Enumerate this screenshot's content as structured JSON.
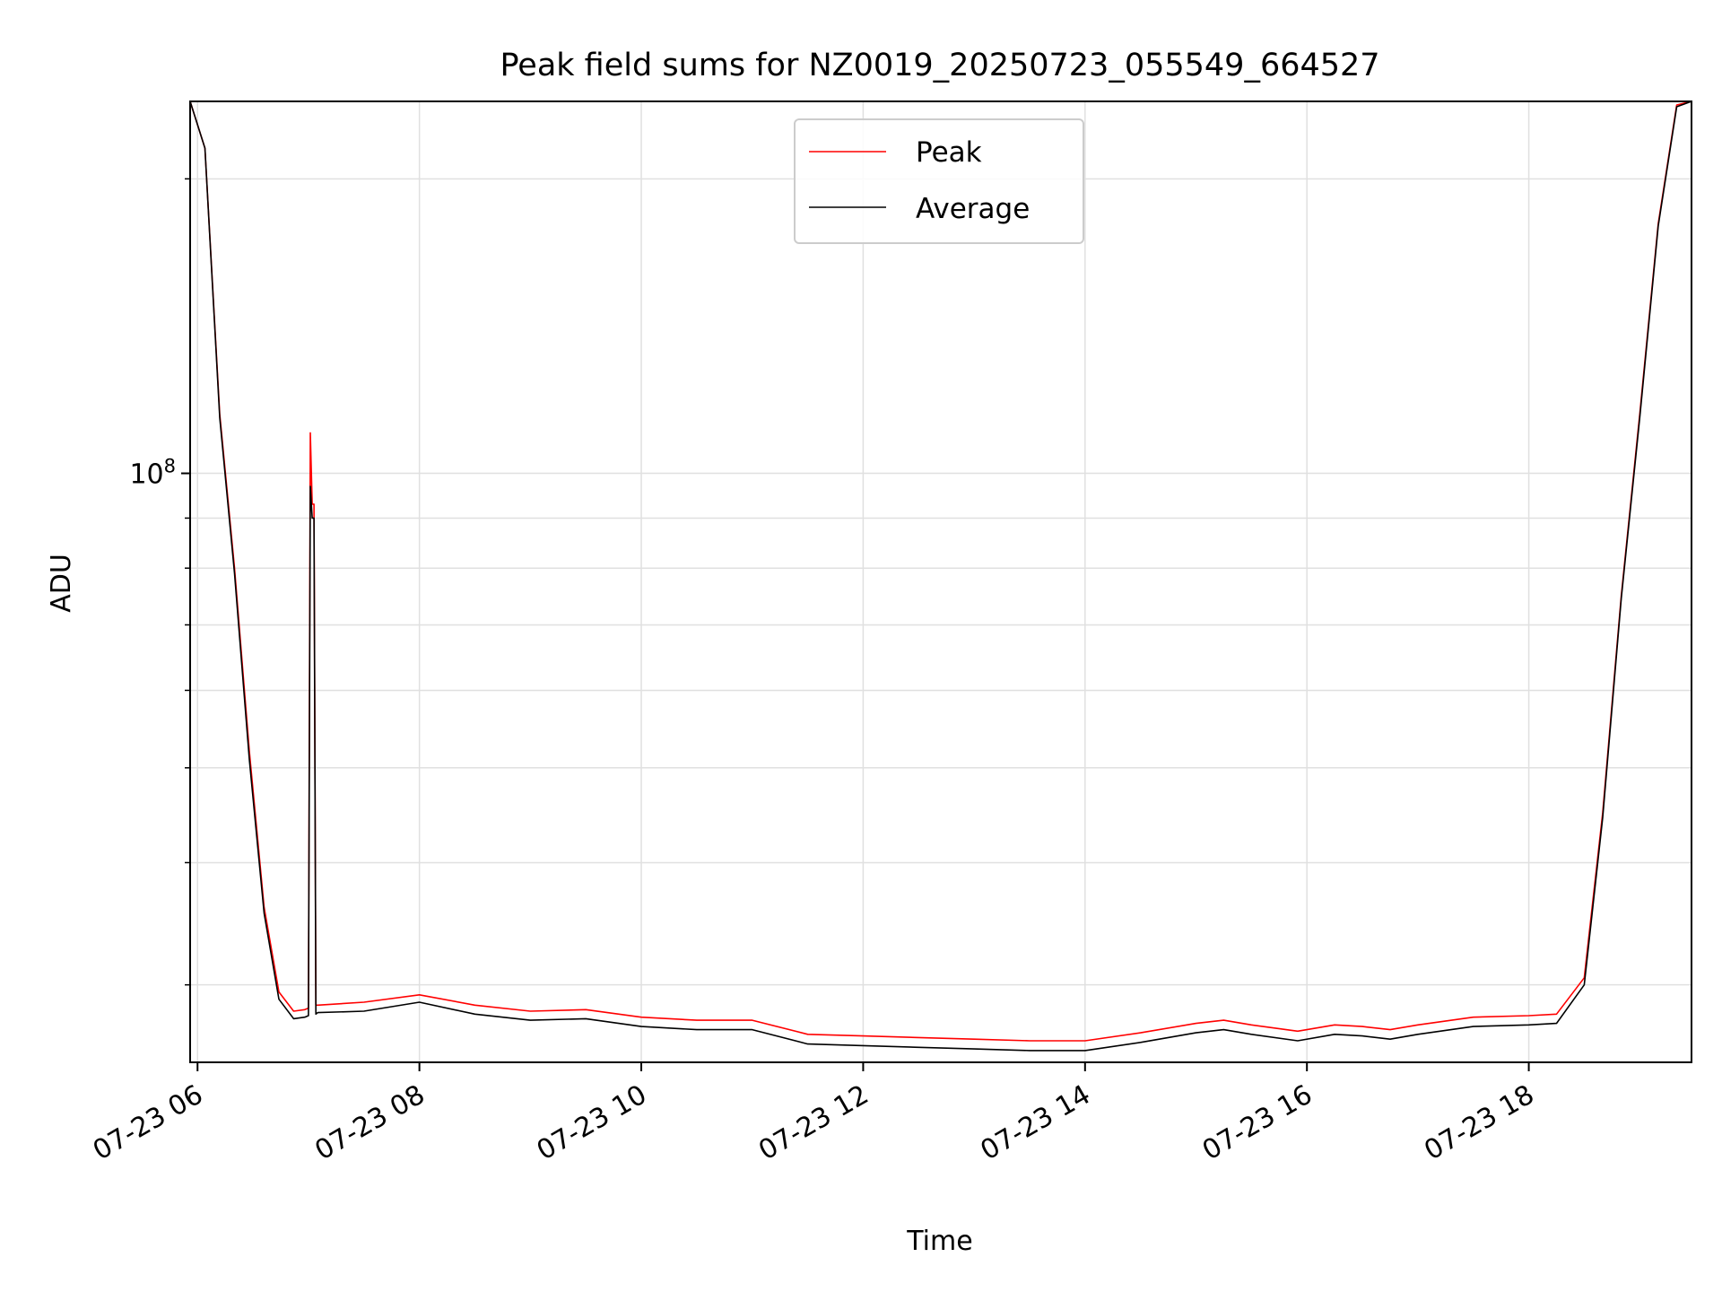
{
  "chart_data": {
    "type": "line",
    "title": "Peak field sums for NZ0019_20250723_055549_664527",
    "xlabel": "Time",
    "ylabel": "ADU",
    "y_scale": "log",
    "x_range": [
      "2025-07-23 05:56",
      "2025-07-23 19:28"
    ],
    "ylim": [
      25000000,
      240000000
    ],
    "grid": true,
    "legend_placement": "upper center",
    "x_ticks": [
      {
        "t": "2025-07-23 06:00",
        "label": "07-23 06"
      },
      {
        "t": "2025-07-23 08:00",
        "label": "07-23 08"
      },
      {
        "t": "2025-07-23 10:00",
        "label": "07-23 10"
      },
      {
        "t": "2025-07-23 12:00",
        "label": "07-23 12"
      },
      {
        "t": "2025-07-23 14:00",
        "label": "07-23 14"
      },
      {
        "t": "2025-07-23 16:00",
        "label": "07-23 16"
      },
      {
        "t": "2025-07-23 18:00",
        "label": "07-23 18"
      }
    ],
    "y_ticks_major": [
      {
        "value": 100000000,
        "base": "10",
        "exp": "8"
      }
    ],
    "y_ticks_minor": [
      30000000,
      40000000,
      50000000,
      60000000,
      70000000,
      80000000,
      90000000,
      200000000
    ],
    "series": [
      {
        "name": "Peak",
        "color": "#ff0000",
        "x": [
          "2025-07-23 05:56",
          "2025-07-23 06:04",
          "2025-07-23 06:12",
          "2025-07-23 06:20",
          "2025-07-23 06:28",
          "2025-07-23 06:36",
          "2025-07-23 06:44",
          "2025-07-23 06:52",
          "2025-07-23 06:58",
          "2025-07-23 07:00",
          "2025-07-23 07:01",
          "2025-07-23 07:02",
          "2025-07-23 07:03",
          "2025-07-23 07:04",
          "2025-07-23 07:05",
          "2025-07-23 07:30",
          "2025-07-23 08:00",
          "2025-07-23 08:30",
          "2025-07-23 09:00",
          "2025-07-23 09:30",
          "2025-07-23 10:00",
          "2025-07-23 10:30",
          "2025-07-23 11:00",
          "2025-07-23 11:30",
          "2025-07-23 12:00",
          "2025-07-23 12:30",
          "2025-07-23 13:00",
          "2025-07-23 13:30",
          "2025-07-23 14:00",
          "2025-07-23 14:30",
          "2025-07-23 15:00",
          "2025-07-23 15:15",
          "2025-07-23 15:30",
          "2025-07-23 15:55",
          "2025-07-23 16:15",
          "2025-07-23 16:30",
          "2025-07-23 16:45",
          "2025-07-23 17:00",
          "2025-07-23 17:30",
          "2025-07-23 18:00",
          "2025-07-23 18:15",
          "2025-07-23 18:30",
          "2025-07-23 18:40",
          "2025-07-23 18:50",
          "2025-07-23 19:00",
          "2025-07-23 19:10",
          "2025-07-23 19:20",
          "2025-07-23 19:28"
        ],
        "y": [
          240000000,
          215000000,
          115000000,
          80000000,
          52000000,
          36000000,
          29500000,
          28200000,
          28300000,
          28400000,
          110000000,
          93000000,
          93000000,
          28600000,
          28600000,
          28800000,
          29300000,
          28600000,
          28200000,
          28300000,
          27800000,
          27600000,
          27600000,
          26700000,
          26600000,
          26500000,
          26400000,
          26300000,
          26300000,
          26800000,
          27400000,
          27600000,
          27300000,
          26900000,
          27300000,
          27200000,
          27000000,
          27300000,
          27800000,
          27900000,
          28000000,
          30500000,
          45000000,
          75000000,
          115000000,
          180000000,
          238000000,
          240000000
        ]
      },
      {
        "name": "Average",
        "color": "#000000",
        "x": [
          "2025-07-23 05:56",
          "2025-07-23 06:04",
          "2025-07-23 06:12",
          "2025-07-23 06:20",
          "2025-07-23 06:28",
          "2025-07-23 06:36",
          "2025-07-23 06:44",
          "2025-07-23 06:52",
          "2025-07-23 06:58",
          "2025-07-23 07:00",
          "2025-07-23 07:01",
          "2025-07-23 07:02",
          "2025-07-23 07:03",
          "2025-07-23 07:04",
          "2025-07-23 07:05",
          "2025-07-23 07:30",
          "2025-07-23 08:00",
          "2025-07-23 08:30",
          "2025-07-23 09:00",
          "2025-07-23 09:30",
          "2025-07-23 10:00",
          "2025-07-23 10:30",
          "2025-07-23 11:00",
          "2025-07-23 11:30",
          "2025-07-23 12:00",
          "2025-07-23 12:30",
          "2025-07-23 13:00",
          "2025-07-23 13:30",
          "2025-07-23 14:00",
          "2025-07-23 14:30",
          "2025-07-23 15:00",
          "2025-07-23 15:15",
          "2025-07-23 15:30",
          "2025-07-23 15:55",
          "2025-07-23 16:15",
          "2025-07-23 16:30",
          "2025-07-23 16:45",
          "2025-07-23 17:00",
          "2025-07-23 17:30",
          "2025-07-23 18:00",
          "2025-07-23 18:15",
          "2025-07-23 18:30",
          "2025-07-23 18:40",
          "2025-07-23 18:50",
          "2025-07-23 19:00",
          "2025-07-23 19:10",
          "2025-07-23 19:20",
          "2025-07-23 19:28"
        ],
        "y": [
          240000000,
          215000000,
          114000000,
          79000000,
          51000000,
          35500000,
          29000000,
          27700000,
          27800000,
          27900000,
          97000000,
          90000000,
          90000000,
          28000000,
          28100000,
          28200000,
          28800000,
          28000000,
          27600000,
          27700000,
          27200000,
          27000000,
          27000000,
          26100000,
          26000000,
          25900000,
          25800000,
          25700000,
          25700000,
          26200000,
          26800000,
          27000000,
          26700000,
          26300000,
          26700000,
          26600000,
          26400000,
          26700000,
          27200000,
          27300000,
          27400000,
          30000000,
          44500000,
          74500000,
          114000000,
          179000000,
          237000000,
          240000000
        ]
      }
    ]
  }
}
